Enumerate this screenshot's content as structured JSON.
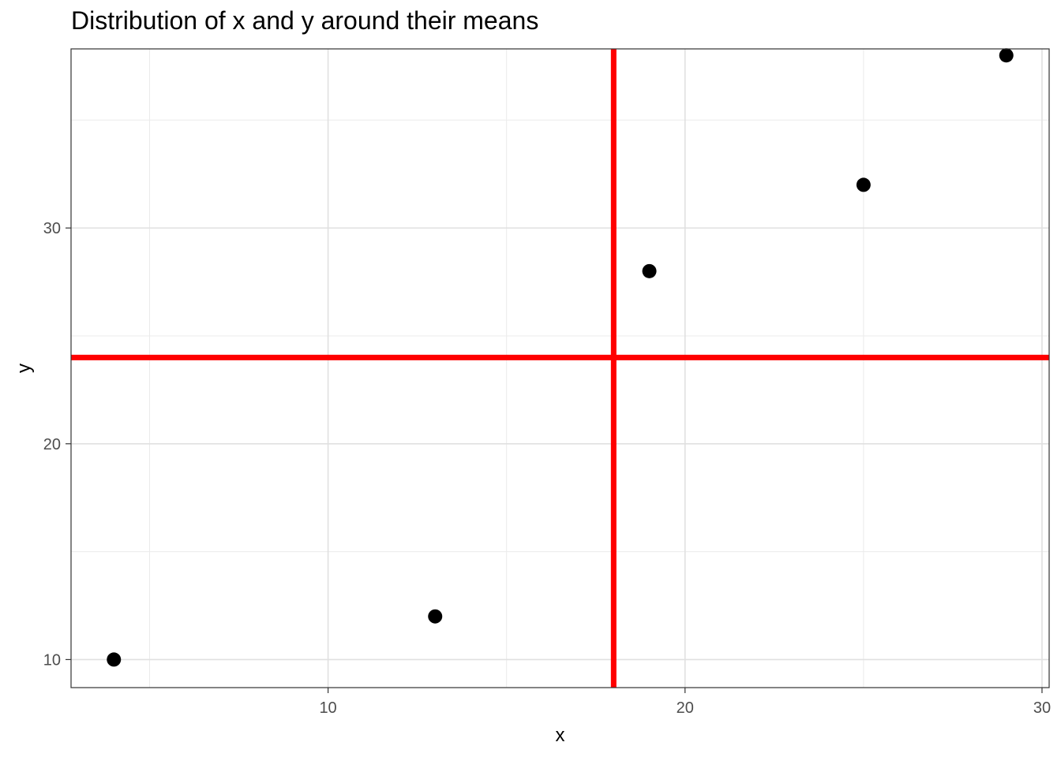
{
  "chart_data": {
    "type": "scatter",
    "title": "Distribution of x and y around their means",
    "xlabel": "x",
    "ylabel": "y",
    "xlim": [
      2.8,
      30.2
    ],
    "ylim": [
      8.7,
      38.3
    ],
    "x_ticks": [
      10,
      20,
      30
    ],
    "y_ticks": [
      10,
      20,
      30
    ],
    "x_minor_ticks": [
      5,
      15,
      25
    ],
    "y_minor_ticks": [
      15,
      25,
      35
    ],
    "grid": true,
    "legend": "none",
    "series": [
      {
        "x": [
          4,
          13,
          19,
          25,
          29
        ],
        "y": [
          10,
          12,
          28,
          32,
          38
        ]
      }
    ],
    "reference_lines": {
      "vertical_x": 18,
      "horizontal_y": 24,
      "color": "#ff0000"
    },
    "point_color": "#000000",
    "tick_labels": {
      "x": [
        "10",
        "20",
        "30"
      ],
      "y": [
        "10",
        "20",
        "30"
      ]
    }
  }
}
